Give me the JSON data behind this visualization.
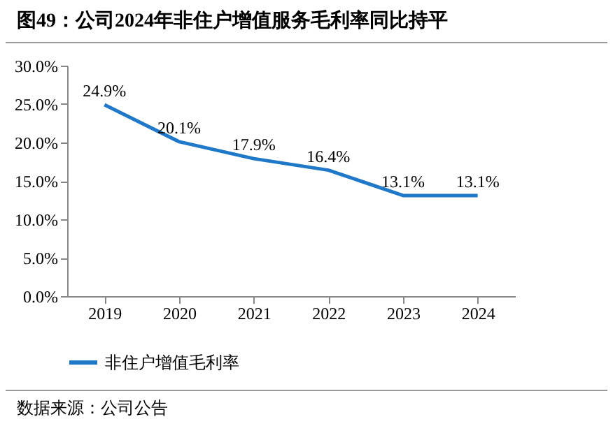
{
  "chart_data": {
    "type": "line",
    "title": "图49：公司2024年非住户增值服务毛利率同比持平",
    "categories": [
      "2019",
      "2020",
      "2021",
      "2022",
      "2023",
      "2024"
    ],
    "series": [
      {
        "name": "非住户增值毛利率",
        "color": "#1f78c8",
        "values": [
          24.9,
          20.1,
          17.9,
          16.4,
          13.1,
          13.1
        ],
        "value_labels": [
          "24.9%",
          "20.1%",
          "17.9%",
          "16.4%",
          "13.1%",
          "13.1%"
        ]
      }
    ],
    "ylim": [
      0,
      30
    ],
    "yticks": [
      {
        "value": 0,
        "label": "0.0%"
      },
      {
        "value": 5,
        "label": "5.0%"
      },
      {
        "value": 10,
        "label": "10.0%"
      },
      {
        "value": 15,
        "label": "15.0%"
      },
      {
        "value": 20,
        "label": "20.0%"
      },
      {
        "value": 25,
        "label": "25.0%"
      },
      {
        "value": 30,
        "label": "30.0%"
      }
    ],
    "grid": false,
    "legend": "bottom",
    "marker": "none",
    "line_style": "solid",
    "annotations": [
      "数据来源：公司公告"
    ]
  }
}
